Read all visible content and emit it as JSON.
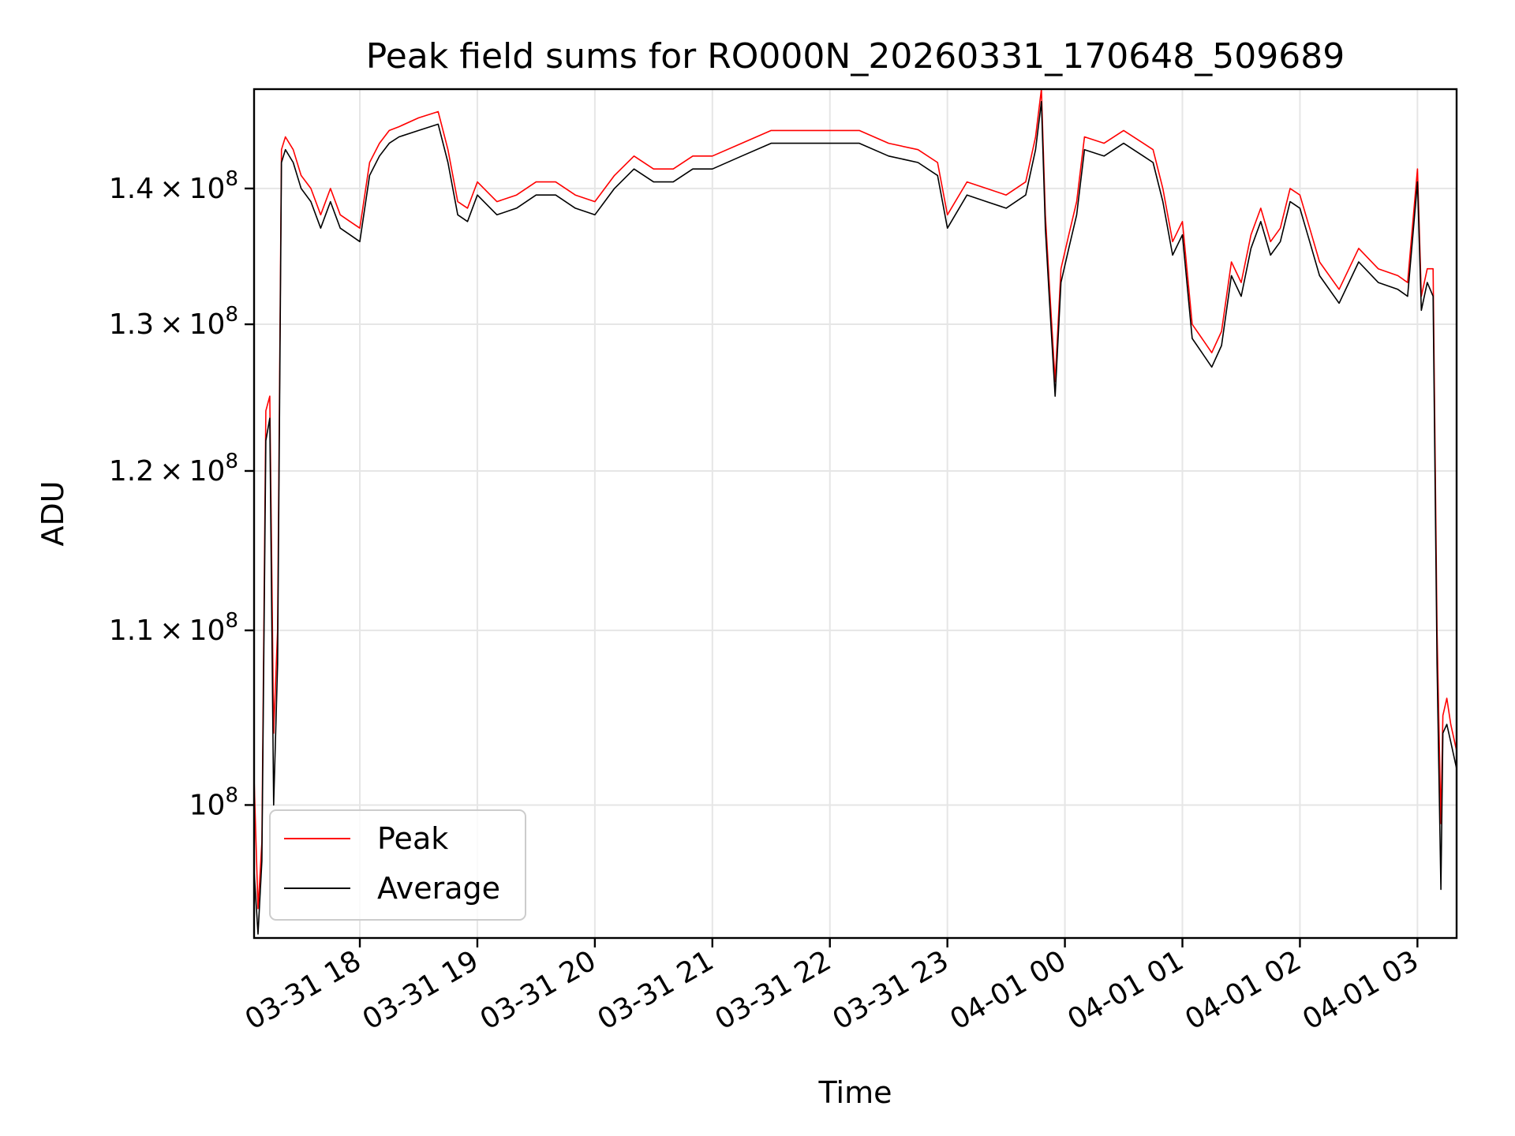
{
  "chart_data": {
    "type": "line",
    "title": "Peak field sums for RO000N_20260331_170648_509689",
    "xlabel": "Time",
    "ylabel": "ADU",
    "y_scale": "log",
    "xlim": [
      "2026-03-31 17:06",
      "2026-04-01 03:20"
    ],
    "ylim": [
      93000000,
      147800000
    ],
    "x_ticks": [
      {
        "value": "2026-03-31 18:00",
        "label": "03-31 18"
      },
      {
        "value": "2026-03-31 19:00",
        "label": "03-31 19"
      },
      {
        "value": "2026-03-31 20:00",
        "label": "03-31 20"
      },
      {
        "value": "2026-03-31 21:00",
        "label": "03-31 21"
      },
      {
        "value": "2026-03-31 22:00",
        "label": "03-31 22"
      },
      {
        "value": "2026-03-31 23:00",
        "label": "03-31 23"
      },
      {
        "value": "2026-04-01 00:00",
        "label": "04-01 00"
      },
      {
        "value": "2026-04-01 01:00",
        "label": "04-01 01"
      },
      {
        "value": "2026-04-01 02:00",
        "label": "04-01 02"
      },
      {
        "value": "2026-04-01 03:00",
        "label": "04-01 03"
      }
    ],
    "y_ticks": [
      {
        "value": 100000000,
        "mantissa": "",
        "exponent": "8"
      },
      {
        "value": 110000000,
        "mantissa": "1.1",
        "exponent": "8"
      },
      {
        "value": 120000000,
        "mantissa": "1.2",
        "exponent": "8"
      },
      {
        "value": 130000000,
        "mantissa": "1.3",
        "exponent": "8"
      },
      {
        "value": 140000000,
        "mantissa": "1.4",
        "exponent": "8"
      }
    ],
    "grid": true,
    "legend_position": "lower-left",
    "series": [
      {
        "name": "Peak",
        "color": "#ff0000",
        "x": [
          "2026-03-31 17:06",
          "2026-03-31 17:08",
          "2026-03-31 17:10",
          "2026-03-31 17:12",
          "2026-03-31 17:14",
          "2026-03-31 17:16",
          "2026-03-31 17:18",
          "2026-03-31 17:20",
          "2026-03-31 17:22",
          "2026-03-31 17:26",
          "2026-03-31 17:30",
          "2026-03-31 17:35",
          "2026-03-31 17:40",
          "2026-03-31 17:45",
          "2026-03-31 17:50",
          "2026-03-31 17:55",
          "2026-03-31 18:00",
          "2026-03-31 18:05",
          "2026-03-31 18:10",
          "2026-03-31 18:15",
          "2026-03-31 18:20",
          "2026-03-31 18:30",
          "2026-03-31 18:40",
          "2026-03-31 18:45",
          "2026-03-31 18:50",
          "2026-03-31 18:55",
          "2026-03-31 19:00",
          "2026-03-31 19:10",
          "2026-03-31 19:20",
          "2026-03-31 19:30",
          "2026-03-31 19:40",
          "2026-03-31 19:50",
          "2026-03-31 20:00",
          "2026-03-31 20:10",
          "2026-03-31 20:20",
          "2026-03-31 20:30",
          "2026-03-31 20:40",
          "2026-03-31 20:50",
          "2026-03-31 21:00",
          "2026-03-31 21:15",
          "2026-03-31 21:30",
          "2026-03-31 21:45",
          "2026-03-31 22:00",
          "2026-03-31 22:15",
          "2026-03-31 22:30",
          "2026-03-31 22:45",
          "2026-03-31 22:55",
          "2026-03-31 23:00",
          "2026-03-31 23:10",
          "2026-03-31 23:20",
          "2026-03-31 23:30",
          "2026-03-31 23:40",
          "2026-03-31 23:45",
          "2026-03-31 23:48",
          "2026-03-31 23:50",
          "2026-03-31 23:52",
          "2026-03-31 23:55",
          "2026-03-31 23:58",
          "2026-04-01 00:02",
          "2026-04-01 00:06",
          "2026-04-01 00:10",
          "2026-04-01 00:20",
          "2026-04-01 00:30",
          "2026-04-01 00:40",
          "2026-04-01 00:45",
          "2026-04-01 00:50",
          "2026-04-01 00:55",
          "2026-04-01 01:00",
          "2026-04-01 01:05",
          "2026-04-01 01:10",
          "2026-04-01 01:15",
          "2026-04-01 01:20",
          "2026-04-01 01:25",
          "2026-04-01 01:30",
          "2026-04-01 01:35",
          "2026-04-01 01:40",
          "2026-04-01 01:45",
          "2026-04-01 01:50",
          "2026-04-01 01:55",
          "2026-04-01 02:00",
          "2026-04-01 02:05",
          "2026-04-01 02:10",
          "2026-04-01 02:20",
          "2026-04-01 02:30",
          "2026-04-01 02:40",
          "2026-04-01 02:50",
          "2026-04-01 02:55",
          "2026-04-01 03:00",
          "2026-04-01 03:02",
          "2026-04-01 03:05",
          "2026-04-01 03:08",
          "2026-04-01 03:10",
          "2026-04-01 03:12",
          "2026-04-01 03:13",
          "2026-04-01 03:15",
          "2026-04-01 03:17",
          "2026-04-01 03:20"
        ],
        "values": [
          101500000,
          94500000,
          98000000,
          124000000,
          125000000,
          104000000,
          110000000,
          143000000,
          144000000,
          143000000,
          141000000,
          140000000,
          138000000,
          140000000,
          138000000,
          137500000,
          137000000,
          142000000,
          143500000,
          144500000,
          144800000,
          145500000,
          146000000,
          143000000,
          139000000,
          138500000,
          140500000,
          139000000,
          139500000,
          140500000,
          140500000,
          139500000,
          139000000,
          141000000,
          142500000,
          141500000,
          141500000,
          142500000,
          142500000,
          143500000,
          144500000,
          144500000,
          144500000,
          144500000,
          143500000,
          143000000,
          142000000,
          138000000,
          140500000,
          140000000,
          139500000,
          140500000,
          144000000,
          147800000,
          138000000,
          133000000,
          126000000,
          134000000,
          136500000,
          139000000,
          144000000,
          143500000,
          144500000,
          143500000,
          143000000,
          140000000,
          136000000,
          137500000,
          130000000,
          129000000,
          128000000,
          129500000,
          134500000,
          133000000,
          136500000,
          138500000,
          136000000,
          137000000,
          140000000,
          139500000,
          137000000,
          134500000,
          132500000,
          135500000,
          134000000,
          133500000,
          133000000,
          141500000,
          132000000,
          134000000,
          134000000,
          110000000,
          99000000,
          105000000,
          106000000,
          104500000,
          103000000
        ]
      },
      {
        "name": "Average",
        "color": "#000000",
        "x": [
          "2026-03-31 17:06",
          "2026-03-31 17:08",
          "2026-03-31 17:10",
          "2026-03-31 17:12",
          "2026-03-31 17:14",
          "2026-03-31 17:16",
          "2026-03-31 17:18",
          "2026-03-31 17:20",
          "2026-03-31 17:22",
          "2026-03-31 17:26",
          "2026-03-31 17:30",
          "2026-03-31 17:35",
          "2026-03-31 17:40",
          "2026-03-31 17:45",
          "2026-03-31 17:50",
          "2026-03-31 17:55",
          "2026-03-31 18:00",
          "2026-03-31 18:05",
          "2026-03-31 18:10",
          "2026-03-31 18:15",
          "2026-03-31 18:20",
          "2026-03-31 18:30",
          "2026-03-31 18:40",
          "2026-03-31 18:45",
          "2026-03-31 18:50",
          "2026-03-31 18:55",
          "2026-03-31 19:00",
          "2026-03-31 19:10",
          "2026-03-31 19:20",
          "2026-03-31 19:30",
          "2026-03-31 19:40",
          "2026-03-31 19:50",
          "2026-03-31 20:00",
          "2026-03-31 20:10",
          "2026-03-31 20:20",
          "2026-03-31 20:30",
          "2026-03-31 20:40",
          "2026-03-31 20:50",
          "2026-03-31 21:00",
          "2026-03-31 21:15",
          "2026-03-31 21:30",
          "2026-03-31 21:45",
          "2026-03-31 22:00",
          "2026-03-31 22:15",
          "2026-03-31 22:30",
          "2026-03-31 22:45",
          "2026-03-31 22:55",
          "2026-03-31 23:00",
          "2026-03-31 23:10",
          "2026-03-31 23:20",
          "2026-03-31 23:30",
          "2026-03-31 23:40",
          "2026-03-31 23:45",
          "2026-03-31 23:48",
          "2026-03-31 23:50",
          "2026-03-31 23:52",
          "2026-03-31 23:55",
          "2026-03-31 23:58",
          "2026-04-01 00:02",
          "2026-04-01 00:06",
          "2026-04-01 00:10",
          "2026-04-01 00:20",
          "2026-04-01 00:30",
          "2026-04-01 00:40",
          "2026-04-01 00:45",
          "2026-04-01 00:50",
          "2026-04-01 00:55",
          "2026-04-01 01:00",
          "2026-04-01 01:05",
          "2026-04-01 01:10",
          "2026-04-01 01:15",
          "2026-04-01 01:20",
          "2026-04-01 01:25",
          "2026-04-01 01:30",
          "2026-04-01 01:35",
          "2026-04-01 01:40",
          "2026-04-01 01:45",
          "2026-04-01 01:50",
          "2026-04-01 01:55",
          "2026-04-01 02:00",
          "2026-04-01 02:05",
          "2026-04-01 02:10",
          "2026-04-01 02:20",
          "2026-04-01 02:30",
          "2026-04-01 02:40",
          "2026-04-01 02:50",
          "2026-04-01 02:55",
          "2026-04-01 03:00",
          "2026-04-01 03:02",
          "2026-04-01 03:05",
          "2026-04-01 03:08",
          "2026-04-01 03:10",
          "2026-04-01 03:12",
          "2026-04-01 03:13",
          "2026-04-01 03:15",
          "2026-04-01 03:17",
          "2026-04-01 03:20"
        ],
        "values": [
          96500000,
          93200000,
          97000000,
          122000000,
          123500000,
          100000000,
          108000000,
          142000000,
          143000000,
          142000000,
          140000000,
          139000000,
          137000000,
          139000000,
          137000000,
          136500000,
          136000000,
          141000000,
          142500000,
          143500000,
          144000000,
          144500000,
          145000000,
          142000000,
          138000000,
          137500000,
          139500000,
          138000000,
          138500000,
          139500000,
          139500000,
          138500000,
          138000000,
          140000000,
          141500000,
          140500000,
          140500000,
          141500000,
          141500000,
          142500000,
          143500000,
          143500000,
          143500000,
          143500000,
          142500000,
          142000000,
          141000000,
          137000000,
          139500000,
          139000000,
          138500000,
          139500000,
          143000000,
          146800000,
          137000000,
          132000000,
          125000000,
          133000000,
          135500000,
          138000000,
          143000000,
          142500000,
          143500000,
          142500000,
          142000000,
          139000000,
          135000000,
          136500000,
          129000000,
          128000000,
          127000000,
          128500000,
          133500000,
          132000000,
          135500000,
          137500000,
          135000000,
          136000000,
          139000000,
          138500000,
          136000000,
          133500000,
          131500000,
          134500000,
          133000000,
          132500000,
          132000000,
          140500000,
          131000000,
          133000000,
          132000000,
          108000000,
          95500000,
          104000000,
          104500000,
          103500000,
          102000000
        ]
      }
    ]
  }
}
